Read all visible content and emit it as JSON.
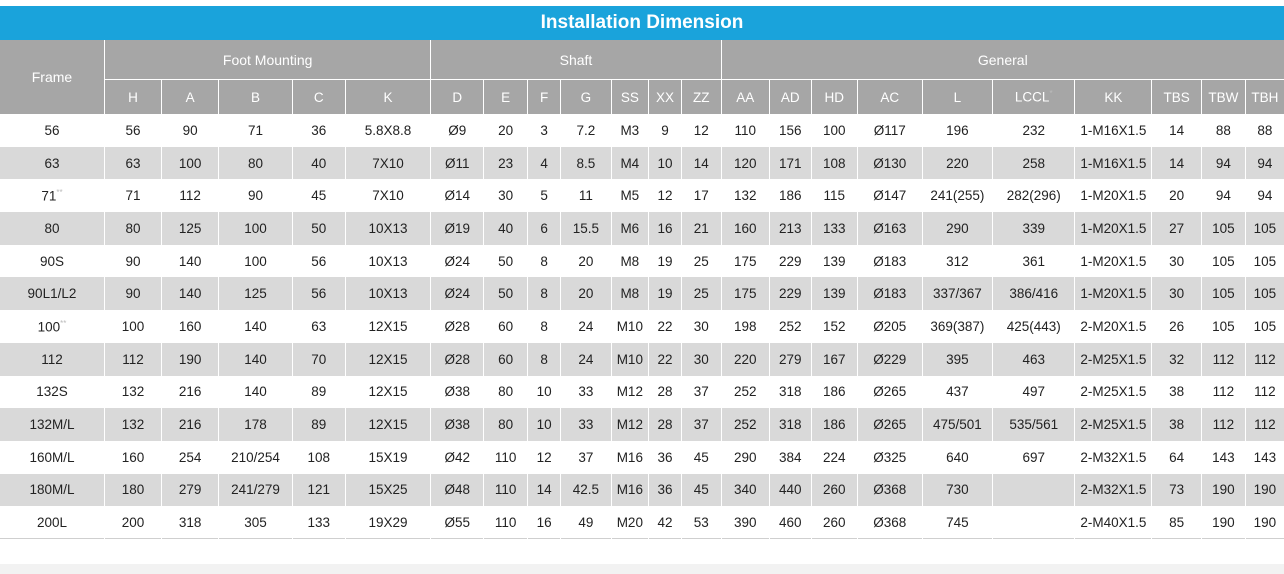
{
  "title": "Installation Dimension",
  "frame_header": "Frame",
  "groups": [
    "Foot Mounting",
    "Shaft",
    "General"
  ],
  "columns": [
    "H",
    "A",
    "B",
    "C",
    "K",
    "D",
    "E",
    "F",
    "G",
    "SS",
    "XX",
    "ZZ",
    "AA",
    "AD",
    "HD",
    "AC",
    "L",
    "LCCL",
    "KK",
    "TBS",
    "TBW",
    "TBH"
  ],
  "column_marks": {
    "LCCL": "*"
  },
  "rows": [
    {
      "frame": "56",
      "mark": "",
      "v": [
        "56",
        "90",
        "71",
        "36",
        "5.8X8.8",
        "Ø9",
        "20",
        "3",
        "7.2",
        "M3",
        "9",
        "12",
        "110",
        "156",
        "100",
        "Ø117",
        "196",
        "232",
        "1-M16X1.5",
        "14",
        "88",
        "88"
      ]
    },
    {
      "frame": "63",
      "mark": "",
      "v": [
        "63",
        "100",
        "80",
        "40",
        "7X10",
        "Ø11",
        "23",
        "4",
        "8.5",
        "M4",
        "10",
        "14",
        "120",
        "171",
        "108",
        "Ø130",
        "220",
        "258",
        "1-M16X1.5",
        "14",
        "94",
        "94"
      ]
    },
    {
      "frame": "71",
      "mark": "**",
      "v": [
        "71",
        "112",
        "90",
        "45",
        "7X10",
        "Ø14",
        "30",
        "5",
        "11",
        "M5",
        "12",
        "17",
        "132",
        "186",
        "115",
        "Ø147",
        "241(255)",
        "282(296)",
        "1-M20X1.5",
        "20",
        "94",
        "94"
      ]
    },
    {
      "frame": "80",
      "mark": "",
      "v": [
        "80",
        "125",
        "100",
        "50",
        "10X13",
        "Ø19",
        "40",
        "6",
        "15.5",
        "M6",
        "16",
        "21",
        "160",
        "213",
        "133",
        "Ø163",
        "290",
        "339",
        "1-M20X1.5",
        "27",
        "105",
        "105"
      ]
    },
    {
      "frame": "90S",
      "mark": "",
      "v": [
        "90",
        "140",
        "100",
        "56",
        "10X13",
        "Ø24",
        "50",
        "8",
        "20",
        "M8",
        "19",
        "25",
        "175",
        "229",
        "139",
        "Ø183",
        "312",
        "361",
        "1-M20X1.5",
        "30",
        "105",
        "105"
      ]
    },
    {
      "frame": "90L1/L2",
      "mark": "",
      "v": [
        "90",
        "140",
        "125",
        "56",
        "10X13",
        "Ø24",
        "50",
        "8",
        "20",
        "M8",
        "19",
        "25",
        "175",
        "229",
        "139",
        "Ø183",
        "337/367",
        "386/416",
        "1-M20X1.5",
        "30",
        "105",
        "105"
      ]
    },
    {
      "frame": "100",
      "mark": "**",
      "v": [
        "100",
        "160",
        "140",
        "63",
        "12X15",
        "Ø28",
        "60",
        "8",
        "24",
        "M10",
        "22",
        "30",
        "198",
        "252",
        "152",
        "Ø205",
        "369(387)",
        "425(443)",
        "2-M20X1.5",
        "26",
        "105",
        "105"
      ]
    },
    {
      "frame": "112",
      "mark": "",
      "v": [
        "112",
        "190",
        "140",
        "70",
        "12X15",
        "Ø28",
        "60",
        "8",
        "24",
        "M10",
        "22",
        "30",
        "220",
        "279",
        "167",
        "Ø229",
        "395",
        "463",
        "2-M25X1.5",
        "32",
        "112",
        "112"
      ]
    },
    {
      "frame": "132S",
      "mark": "",
      "v": [
        "132",
        "216",
        "140",
        "89",
        "12X15",
        "Ø38",
        "80",
        "10",
        "33",
        "M12",
        "28",
        "37",
        "252",
        "318",
        "186",
        "Ø265",
        "437",
        "497",
        "2-M25X1.5",
        "38",
        "112",
        "112"
      ]
    },
    {
      "frame": "132M/L",
      "mark": "",
      "v": [
        "132",
        "216",
        "178",
        "89",
        "12X15",
        "Ø38",
        "80",
        "10",
        "33",
        "M12",
        "28",
        "37",
        "252",
        "318",
        "186",
        "Ø265",
        "475/501",
        "535/561",
        "2-M25X1.5",
        "38",
        "112",
        "112"
      ]
    },
    {
      "frame": "160M/L",
      "mark": "",
      "v": [
        "160",
        "254",
        "210/254",
        "108",
        "15X19",
        "Ø42",
        "110",
        "12",
        "37",
        "M16",
        "36",
        "45",
        "290",
        "384",
        "224",
        "Ø325",
        "640",
        "697",
        "2-M32X1.5",
        "64",
        "143",
        "143"
      ]
    },
    {
      "frame": "180M/L",
      "mark": "",
      "v": [
        "180",
        "279",
        "241/279",
        "121",
        "15X25",
        "Ø48",
        "110",
        "14",
        "42.5",
        "M16",
        "36",
        "45",
        "340",
        "440",
        "260",
        "Ø368",
        "730",
        "",
        "2-M32X1.5",
        "73",
        "190",
        "190"
      ]
    },
    {
      "frame": "200L",
      "mark": "",
      "v": [
        "200",
        "318",
        "305",
        "133",
        "19X29",
        "Ø55",
        "110",
        "16",
        "49",
        "M20",
        "42",
        "53",
        "390",
        "460",
        "260",
        "Ø368",
        "745",
        "",
        "2-M40X1.5",
        "85",
        "190",
        "190"
      ]
    }
  ],
  "colors": {
    "title_bg": "#1aa3db",
    "header_bg": "#a6a6a6",
    "stripe": "#d9d9d9"
  }
}
